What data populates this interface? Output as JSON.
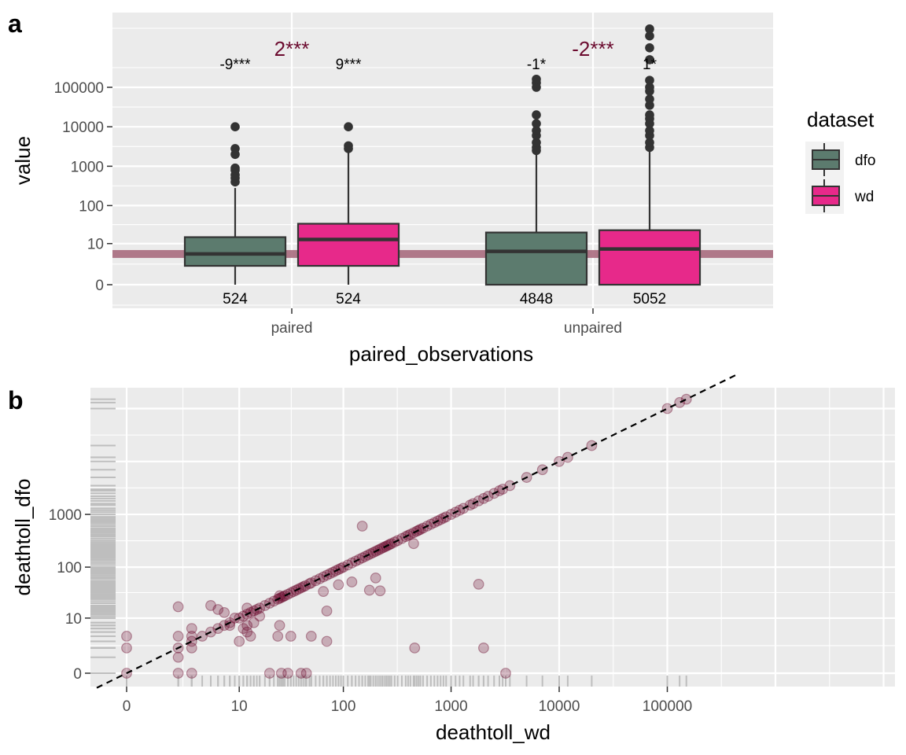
{
  "colors": {
    "dfo": "#5c7b6e",
    "wd": "#e7298a",
    "point": "#6b0a2e",
    "rug": "#bebebe",
    "median_band": "#a86b7e"
  },
  "chart_data": [
    {
      "type": "boxplot",
      "tag": "a",
      "xlabel": "paired_observations",
      "ylabel": "value",
      "scale": "log10(x+1)",
      "categories": [
        "paired",
        "unpaired"
      ],
      "yticks": [
        "0",
        "10",
        "100",
        "1000",
        "10000",
        "100000"
      ],
      "ytick_values": [
        0,
        10,
        100,
        1000,
        10000,
        100000
      ],
      "grid": true,
      "median_band_value": 5,
      "legend": {
        "title": "dataset",
        "position": "right",
        "entries": [
          "dfo",
          "wd"
        ]
      },
      "boxes": [
        {
          "category": "paired",
          "series": "dfo",
          "q1": 2,
          "median": 5,
          "q3": 15,
          "whisker_low": 0,
          "whisker_high": 280,
          "outliers": [
            400,
            500,
            600,
            800,
            900,
            2000,
            2800,
            10000
          ],
          "n": "524",
          "sig": "-9***"
        },
        {
          "category": "paired",
          "series": "wd",
          "q1": 2,
          "median": 13,
          "q3": 34,
          "whisker_low": 0,
          "whisker_high": 2200,
          "outliers": [
            2800,
            3300,
            10000
          ],
          "n": "524",
          "sig": "9***"
        },
        {
          "category": "unpaired",
          "series": "dfo",
          "q1": 0,
          "median": 6,
          "q3": 20,
          "whisker_low": 0,
          "whisker_high": 2000,
          "outliers": [
            2500,
            3000,
            4000,
            6000,
            8000,
            12000,
            20000,
            100000,
            130000,
            160000
          ],
          "n": "4848",
          "sig": "-1*"
        },
        {
          "category": "unpaired",
          "series": "wd",
          "q1": 0,
          "median": 7,
          "q3": 23,
          "whisker_low": 0,
          "whisker_high": 2500,
          "outliers": [
            3000,
            4000,
            6000,
            8000,
            12000,
            16000,
            20000,
            35000,
            50000,
            80000,
            100000,
            150000,
            500000,
            1000000,
            2000000,
            3000000
          ],
          "n": "5052",
          "sig": "1*"
        }
      ],
      "category_diff_labels": [
        "2***",
        "-2***"
      ]
    },
    {
      "type": "scatter",
      "tag": "b",
      "xlabel": "deathtoll_wd",
      "ylabel": "deathtoll_dfo",
      "scale": "log10(x+1)",
      "xticks": [
        "0",
        "10",
        "100",
        "1000",
        "10000",
        "100000"
      ],
      "xtick_values": [
        0,
        10,
        100,
        1000,
        10000,
        100000
      ],
      "yticks": [
        "0",
        "10",
        "100",
        "1000"
      ],
      "ytick_values": [
        0,
        10,
        100,
        1000
      ],
      "reference_line": "y = x",
      "points": [
        [
          0,
          0
        ],
        [
          0,
          2
        ],
        [
          0,
          4
        ],
        [
          2,
          0
        ],
        [
          2,
          17
        ],
        [
          2,
          2
        ],
        [
          2,
          4
        ],
        [
          3,
          2
        ],
        [
          3,
          4
        ],
        [
          3,
          6
        ],
        [
          3,
          3
        ],
        [
          4,
          4
        ],
        [
          5,
          5
        ],
        [
          5,
          18
        ],
        [
          6,
          6
        ],
        [
          6,
          15
        ],
        [
          7,
          7
        ],
        [
          7,
          13
        ],
        [
          8,
          8
        ],
        [
          8,
          7
        ],
        [
          9,
          10
        ],
        [
          10,
          10
        ],
        [
          10,
          3
        ],
        [
          11,
          11
        ],
        [
          11,
          6
        ],
        [
          12,
          12
        ],
        [
          12,
          7
        ],
        [
          12,
          16
        ],
        [
          13,
          13
        ],
        [
          13,
          4
        ],
        [
          14,
          14
        ],
        [
          14,
          8
        ],
        [
          15,
          15
        ],
        [
          16,
          16
        ],
        [
          16,
          11
        ],
        [
          18,
          18
        ],
        [
          20,
          20
        ],
        [
          20,
          0
        ],
        [
          22,
          22
        ],
        [
          24,
          24
        ],
        [
          24,
          4
        ],
        [
          25,
          25
        ],
        [
          25,
          7
        ],
        [
          25,
          28
        ],
        [
          26,
          26
        ],
        [
          26,
          0
        ],
        [
          27,
          27
        ],
        [
          28,
          28
        ],
        [
          30,
          30
        ],
        [
          30,
          0
        ],
        [
          32,
          32
        ],
        [
          32,
          4
        ],
        [
          34,
          34
        ],
        [
          36,
          36
        ],
        [
          38,
          38
        ],
        [
          40,
          40
        ],
        [
          40,
          0
        ],
        [
          42,
          42
        ],
        [
          44,
          44
        ],
        [
          45,
          0
        ],
        [
          48,
          48
        ],
        [
          50,
          50
        ],
        [
          50,
          4
        ],
        [
          55,
          55
        ],
        [
          60,
          60
        ],
        [
          65,
          65
        ],
        [
          65,
          34
        ],
        [
          70,
          70
        ],
        [
          70,
          14
        ],
        [
          70,
          3
        ],
        [
          75,
          75
        ],
        [
          80,
          80
        ],
        [
          85,
          85
        ],
        [
          90,
          90
        ],
        [
          90,
          46
        ],
        [
          95,
          95
        ],
        [
          100,
          100
        ],
        [
          110,
          110
        ],
        [
          120,
          120
        ],
        [
          120,
          52
        ],
        [
          130,
          130
        ],
        [
          140,
          140
        ],
        [
          150,
          150
        ],
        [
          150,
          600
        ],
        [
          160,
          160
        ],
        [
          170,
          170
        ],
        [
          180,
          180
        ],
        [
          190,
          190
        ],
        [
          200,
          200
        ],
        [
          200,
          62
        ],
        [
          210,
          210
        ],
        [
          220,
          220
        ],
        [
          220,
          35
        ],
        [
          230,
          230
        ],
        [
          240,
          240
        ],
        [
          250,
          250
        ],
        [
          260,
          260
        ],
        [
          270,
          270
        ],
        [
          280,
          280
        ],
        [
          300,
          300
        ],
        [
          320,
          320
        ],
        [
          350,
          350
        ],
        [
          380,
          380
        ],
        [
          400,
          400
        ],
        [
          420,
          420
        ],
        [
          450,
          450
        ],
        [
          450,
          280
        ],
        [
          460,
          2
        ],
        [
          480,
          480
        ],
        [
          500,
          500
        ],
        [
          520,
          520
        ],
        [
          550,
          550
        ],
        [
          600,
          600
        ],
        [
          650,
          650
        ],
        [
          700,
          700
        ],
        [
          750,
          750
        ],
        [
          800,
          800
        ],
        [
          850,
          850
        ],
        [
          900,
          900
        ],
        [
          1000,
          1000
        ],
        [
          1100,
          1100
        ],
        [
          1200,
          1200
        ],
        [
          1300,
          1300
        ],
        [
          1500,
          1500
        ],
        [
          1600,
          1600
        ],
        [
          1800,
          1800
        ],
        [
          1800,
          47
        ],
        [
          2000,
          2000
        ],
        [
          2000,
          2
        ],
        [
          2200,
          2200
        ],
        [
          2500,
          2500
        ],
        [
          2800,
          2800
        ],
        [
          3000,
          3000
        ],
        [
          3200,
          0
        ],
        [
          3500,
          3500
        ],
        [
          5000,
          5000
        ],
        [
          7000,
          7000
        ],
        [
          10000,
          10000
        ],
        [
          12000,
          12000
        ],
        [
          20000,
          20000
        ],
        [
          100000,
          100000
        ],
        [
          130000,
          130000
        ],
        [
          150000,
          150000
        ],
        [
          175,
          36
        ],
        [
          12,
          5
        ],
        [
          3,
          0
        ],
        [
          2,
          1
        ]
      ]
    }
  ]
}
